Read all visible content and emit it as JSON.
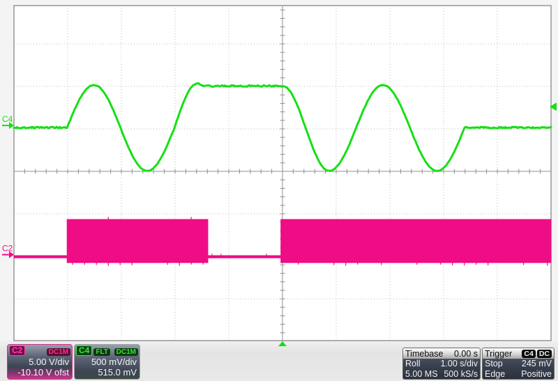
{
  "channels": [
    {
      "name": "C2",
      "coupling": "DC1M",
      "scale": "5.00 V/div",
      "offset": "-10.10 V ofst",
      "color": "#ee0d84"
    },
    {
      "name": "C4",
      "filter": "FLT",
      "coupling": "DC1M",
      "scale": "500 mV/div",
      "offset": "515.0 mV",
      "color": "#16df16"
    }
  ],
  "timebase": {
    "title": "Timebase",
    "position": "0.00 s",
    "mode": "Roll",
    "scale": "1.00 s/div",
    "samples": "5.00 MS",
    "rate": "500 kS/s"
  },
  "trigger": {
    "title": "Trigger",
    "source": "C4",
    "coupling": "DC",
    "mode": "Stop",
    "level": "245 mV",
    "type": "Edge",
    "slope": "Positive"
  },
  "colors": {
    "c2": "#ee0d84",
    "c4": "#16df16",
    "grid_dotted": "#bdbdbd",
    "grid_frame": "#8f8f8f",
    "screen_bg": "#ffffff"
  },
  "chart_data": {
    "type": "line",
    "x_axis": {
      "unit": "s",
      "per_div": 1.0,
      "min": -5.0,
      "max": 5.0,
      "divisions": 10
    },
    "y_axis": {
      "divisions": 8
    },
    "grid": {
      "style": "dotted",
      "center_cross": true
    },
    "trigger_marker": {
      "source": "C4",
      "level_v": 0.245,
      "time_s": 0.0
    },
    "series": [
      {
        "name": "C4",
        "color": "#16df16",
        "unit": "V",
        "v_per_div": 0.5,
        "offset_v": 0.515,
        "render": "trace",
        "segments": [
          {
            "t0": -5.0,
            "t1": -4.01,
            "v0": 0.0,
            "v1": 0.0,
            "shape": "line"
          },
          {
            "t0": -4.01,
            "t1": -3.51,
            "v0": 0.0,
            "v1": 0.5,
            "shape": "quarter-out"
          },
          {
            "t0": -3.51,
            "t1": -2.52,
            "v0": 0.5,
            "v1": -0.51,
            "shape": "half"
          },
          {
            "t0": -2.52,
            "t1": -2.01,
            "v0": -0.51,
            "v1": 0.0,
            "shape": "quarter-in"
          },
          {
            "t0": -2.01,
            "t1": -1.58,
            "v0": 0.0,
            "v1": 0.52,
            "shape": "quarter-out"
          },
          {
            "t0": -1.58,
            "t1": -1.47,
            "v0": 0.52,
            "v1": 0.49,
            "shape": "half"
          },
          {
            "t0": -1.47,
            "t1": 0.0,
            "v0": 0.49,
            "v1": 0.49,
            "shape": "line"
          },
          {
            "t0": 0.0,
            "t1": 0.87,
            "v0": 0.49,
            "v1": -0.51,
            "shape": "half"
          },
          {
            "t0": 0.87,
            "t1": 1.87,
            "v0": -0.51,
            "v1": 0.5,
            "shape": "half"
          },
          {
            "t0": 1.87,
            "t1": 2.88,
            "v0": 0.5,
            "v1": -0.51,
            "shape": "half"
          },
          {
            "t0": 2.88,
            "t1": 3.39,
            "v0": -0.51,
            "v1": 0.0,
            "shape": "quarter-in"
          },
          {
            "t0": 3.39,
            "t1": 5.0,
            "v0": 0.0,
            "v1": 0.0,
            "shape": "line"
          }
        ]
      },
      {
        "name": "C2",
        "color": "#ee0d84",
        "unit": "V",
        "v_per_div": 5.0,
        "offset_v": -10.1,
        "render": "pwm-band",
        "baseline_v": 0.05,
        "noise_half_v": 0.15,
        "high_v": 4.44,
        "low_v": -0.64,
        "intervals": [
          {
            "t0": -5.0,
            "t1": -4.01,
            "state": "idle"
          },
          {
            "t0": -4.01,
            "t1": -1.39,
            "state": "burst"
          },
          {
            "t0": -1.39,
            "t1": -0.03,
            "state": "idle"
          },
          {
            "t0": -0.03,
            "t1": 5.0,
            "state": "burst"
          }
        ]
      }
    ]
  }
}
